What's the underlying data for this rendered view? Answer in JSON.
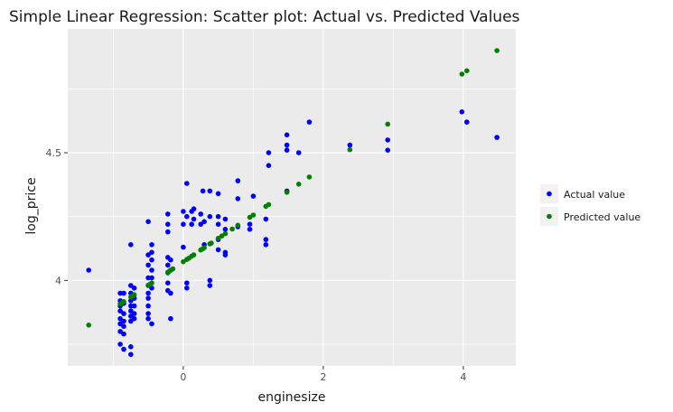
{
  "chart_data": {
    "type": "scatter",
    "title": "Simple Linear Regression: Scatter plot: Actual vs. Predicted Values",
    "xlabel": "enginesize",
    "ylabel": "log_price",
    "xlim": [
      -1.65,
      4.75
    ],
    "ylim": [
      3.665,
      4.985
    ],
    "x_ticks": [
      {
        "value": 0,
        "label": "0"
      },
      {
        "value": 2,
        "label": "2"
      },
      {
        "value": 4,
        "label": "4"
      }
    ],
    "y_ticks": [
      {
        "value": 4.0,
        "label": "4"
      },
      {
        "value": 4.5,
        "label": "4.5"
      }
    ],
    "grid": true,
    "legend_position": "right",
    "series": [
      {
        "name": "Actual value",
        "color": "#0000ff",
        "points": [
          [
            -1.35,
            4.04
          ],
          [
            -0.9,
            3.95
          ],
          [
            -0.9,
            3.92
          ],
          [
            -0.9,
            3.9
          ],
          [
            -0.9,
            3.88
          ],
          [
            -0.9,
            3.85
          ],
          [
            -0.9,
            3.83
          ],
          [
            -0.9,
            3.8
          ],
          [
            -0.9,
            3.75
          ],
          [
            -0.85,
            3.95
          ],
          [
            -0.85,
            3.91
          ],
          [
            -0.85,
            3.87
          ],
          [
            -0.85,
            3.84
          ],
          [
            -0.85,
            3.82
          ],
          [
            -0.85,
            3.79
          ],
          [
            -0.85,
            3.73
          ],
          [
            -0.75,
            4.14
          ],
          [
            -0.75,
            3.98
          ],
          [
            -0.75,
            3.95
          ],
          [
            -0.75,
            3.92
          ],
          [
            -0.75,
            3.9
          ],
          [
            -0.75,
            3.88
          ],
          [
            -0.75,
            3.86
          ],
          [
            -0.75,
            3.84
          ],
          [
            -0.75,
            3.74
          ],
          [
            -0.75,
            3.71
          ],
          [
            -0.7,
            3.97
          ],
          [
            -0.7,
            3.93
          ],
          [
            -0.7,
            3.9
          ],
          [
            -0.7,
            3.87
          ],
          [
            -0.7,
            3.85
          ],
          [
            -0.5,
            4.23
          ],
          [
            -0.5,
            4.1
          ],
          [
            -0.5,
            4.06
          ],
          [
            -0.5,
            4.01
          ],
          [
            -0.5,
            3.98
          ],
          [
            -0.5,
            3.95
          ],
          [
            -0.5,
            3.93
          ],
          [
            -0.5,
            3.9
          ],
          [
            -0.5,
            3.87
          ],
          [
            -0.5,
            3.85
          ],
          [
            -0.45,
            4.14
          ],
          [
            -0.45,
            4.11
          ],
          [
            -0.45,
            4.08
          ],
          [
            -0.45,
            4.04
          ],
          [
            -0.45,
            4.01
          ],
          [
            -0.45,
            3.97
          ],
          [
            -0.45,
            3.83
          ],
          [
            -0.22,
            4.26
          ],
          [
            -0.22,
            4.22
          ],
          [
            -0.22,
            4.19
          ],
          [
            -0.22,
            4.09
          ],
          [
            -0.22,
            4.06
          ],
          [
            -0.22,
            4.03
          ],
          [
            -0.22,
            3.99
          ],
          [
            -0.22,
            3.96
          ],
          [
            -0.18,
            4.08
          ],
          [
            -0.18,
            4.04
          ],
          [
            -0.18,
            3.95
          ],
          [
            -0.18,
            3.85
          ],
          [
            0.0,
            4.27
          ],
          [
            0.0,
            4.22
          ],
          [
            0.0,
            4.13
          ],
          [
            0.05,
            4.38
          ],
          [
            0.05,
            4.25
          ],
          [
            0.05,
            3.99
          ],
          [
            0.05,
            3.97
          ],
          [
            0.12,
            4.27
          ],
          [
            0.12,
            4.22
          ],
          [
            0.15,
            4.28
          ],
          [
            0.15,
            4.24
          ],
          [
            0.25,
            4.26
          ],
          [
            0.25,
            4.22
          ],
          [
            0.28,
            4.35
          ],
          [
            0.3,
            4.23
          ],
          [
            0.3,
            4.14
          ],
          [
            0.38,
            4.35
          ],
          [
            0.38,
            4.25
          ],
          [
            0.38,
            4.0
          ],
          [
            0.38,
            3.98
          ],
          [
            0.5,
            4.34
          ],
          [
            0.5,
            4.25
          ],
          [
            0.5,
            4.22
          ],
          [
            0.5,
            4.16
          ],
          [
            0.5,
            4.12
          ],
          [
            0.6,
            4.24
          ],
          [
            0.6,
            4.2
          ],
          [
            0.6,
            4.11
          ],
          [
            0.6,
            4.1
          ],
          [
            0.78,
            4.39
          ],
          [
            0.78,
            4.32
          ],
          [
            0.78,
            4.21
          ],
          [
            0.95,
            4.22
          ],
          [
            0.95,
            4.2
          ],
          [
            1.0,
            4.33
          ],
          [
            1.18,
            4.24
          ],
          [
            1.18,
            4.16
          ],
          [
            1.18,
            4.14
          ],
          [
            1.22,
            4.5
          ],
          [
            1.22,
            4.45
          ],
          [
            1.48,
            4.57
          ],
          [
            1.48,
            4.53
          ],
          [
            1.48,
            4.51
          ],
          [
            1.48,
            4.35
          ],
          [
            1.65,
            4.5
          ],
          [
            1.8,
            4.62
          ],
          [
            2.38,
            4.53
          ],
          [
            2.92,
            4.55
          ],
          [
            2.92,
            4.51
          ],
          [
            3.98,
            4.66
          ],
          [
            4.05,
            4.62
          ],
          [
            4.48,
            4.56
          ]
        ]
      },
      {
        "name": "Predicted value",
        "color": "#008000",
        "points": [
          [
            -1.35,
            3.825
          ],
          [
            -0.9,
            3.908
          ],
          [
            -0.88,
            3.912
          ],
          [
            -0.85,
            3.917
          ],
          [
            -0.75,
            3.935
          ],
          [
            -0.72,
            3.94
          ],
          [
            -0.7,
            3.944
          ],
          [
            -0.5,
            3.981
          ],
          [
            -0.47,
            3.986
          ],
          [
            -0.45,
            3.99
          ],
          [
            -0.22,
            4.032
          ],
          [
            -0.2,
            4.036
          ],
          [
            -0.18,
            4.04
          ],
          [
            -0.15,
            4.045
          ],
          [
            0.0,
            4.073
          ],
          [
            0.05,
            4.082
          ],
          [
            0.08,
            4.087
          ],
          [
            0.12,
            4.095
          ],
          [
            0.15,
            4.1
          ],
          [
            0.25,
            4.119
          ],
          [
            0.28,
            4.124
          ],
          [
            0.3,
            4.128
          ],
          [
            0.38,
            4.143
          ],
          [
            0.4,
            4.146
          ],
          [
            0.5,
            4.165
          ],
          [
            0.55,
            4.174
          ],
          [
            0.6,
            4.183
          ],
          [
            0.7,
            4.201
          ],
          [
            0.78,
            4.216
          ],
          [
            0.95,
            4.247
          ],
          [
            1.0,
            4.256
          ],
          [
            1.18,
            4.29
          ],
          [
            1.22,
            4.297
          ],
          [
            1.48,
            4.345
          ],
          [
            1.65,
            4.377
          ],
          [
            1.8,
            4.405
          ],
          [
            2.38,
            4.512
          ],
          [
            2.92,
            4.612
          ],
          [
            3.98,
            4.808
          ],
          [
            4.05,
            4.821
          ],
          [
            4.48,
            4.9
          ]
        ]
      }
    ]
  }
}
